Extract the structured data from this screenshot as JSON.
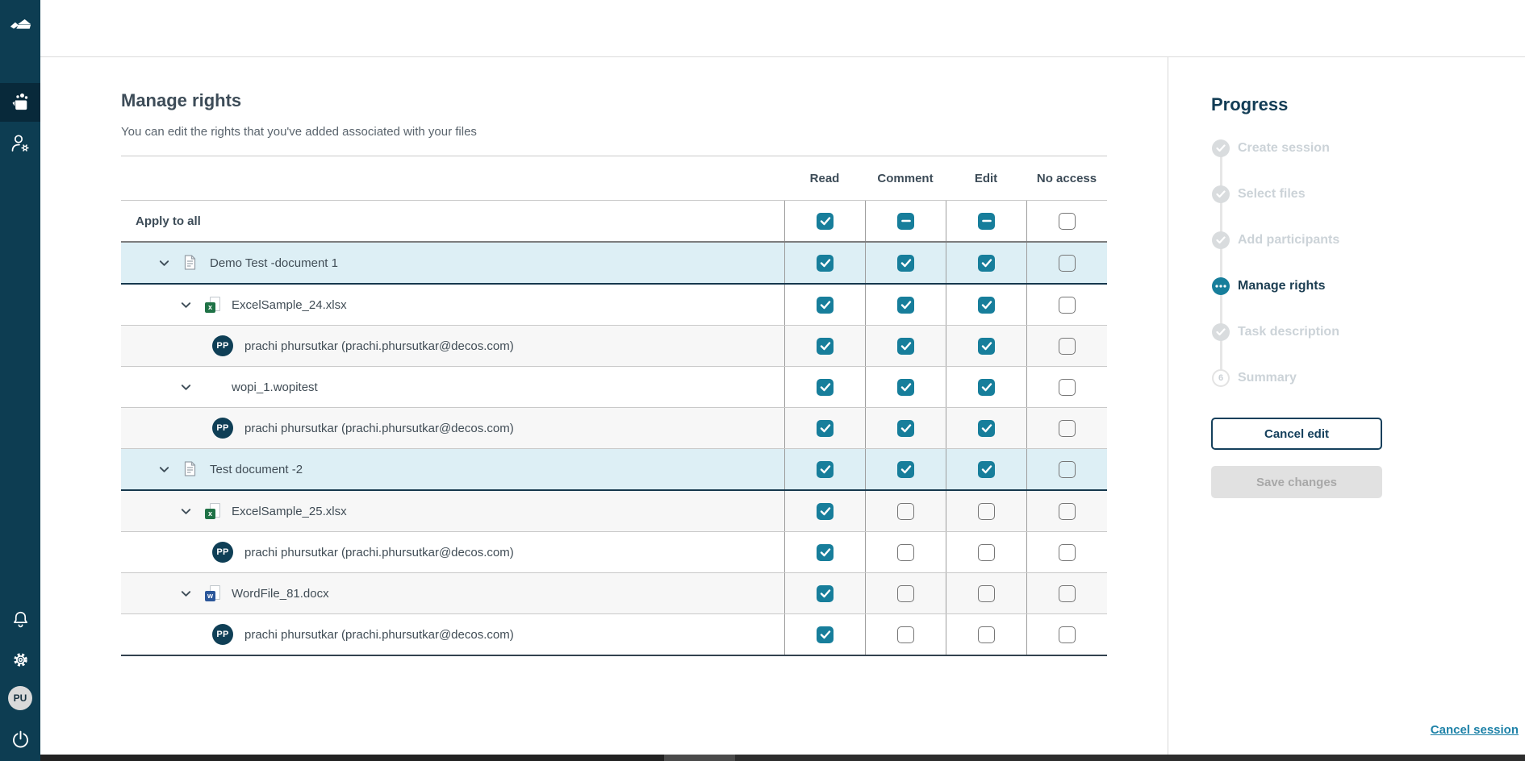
{
  "colors": {
    "accent": "#177e9b",
    "sidebar_bg": "#0d3d52",
    "row_highlight": "#ddeff5",
    "link": "#1e82a8"
  },
  "sidebar": {
    "avatar_initials": "PU"
  },
  "page": {
    "title": "Manage rights",
    "subtitle": "You can edit the rights that you've added associated with your files"
  },
  "rights_table": {
    "columns": [
      "Read",
      "Comment",
      "Edit",
      "No access"
    ],
    "rows": [
      {
        "type": "apply",
        "label": "Apply to all",
        "states": [
          "checked",
          "indeterminate",
          "indeterminate",
          "unchecked"
        ]
      },
      {
        "type": "document",
        "label": "Demo Test -document 1",
        "icon": "generic-doc",
        "states": [
          "checked",
          "checked",
          "checked",
          "unchecked"
        ]
      },
      {
        "type": "file",
        "label": "ExcelSample_24.xlsx",
        "icon": "excel",
        "states": [
          "checked",
          "checked",
          "checked",
          "unchecked"
        ]
      },
      {
        "type": "participant",
        "label": "prachi phursutkar (prachi.phursutkar@decos.com)",
        "initials": "PP",
        "states": [
          "checked",
          "checked",
          "checked",
          "unchecked"
        ]
      },
      {
        "type": "file",
        "label": "wopi_1.wopitest",
        "icon": "none",
        "states": [
          "checked",
          "checked",
          "checked",
          "unchecked"
        ]
      },
      {
        "type": "participant",
        "label": "prachi phursutkar (prachi.phursutkar@decos.com)",
        "initials": "PP",
        "states": [
          "checked",
          "checked",
          "checked",
          "unchecked"
        ]
      },
      {
        "type": "document",
        "label": "Test document -2",
        "icon": "generic-doc",
        "states": [
          "checked",
          "checked",
          "checked",
          "unchecked"
        ]
      },
      {
        "type": "file",
        "label": "ExcelSample_25.xlsx",
        "icon": "excel",
        "states": [
          "checked",
          "unchecked",
          "unchecked",
          "unchecked"
        ]
      },
      {
        "type": "participant",
        "label": "prachi phursutkar (prachi.phursutkar@decos.com)",
        "initials": "PP",
        "states": [
          "checked",
          "unchecked",
          "unchecked",
          "unchecked"
        ]
      },
      {
        "type": "file",
        "label": "WordFile_81.docx",
        "icon": "word",
        "states": [
          "checked",
          "unchecked",
          "unchecked",
          "unchecked"
        ]
      },
      {
        "type": "participant",
        "label": "prachi phursutkar (prachi.phursutkar@decos.com)",
        "initials": "PP",
        "states": [
          "checked",
          "unchecked",
          "unchecked",
          "unchecked"
        ]
      }
    ]
  },
  "progress": {
    "title": "Progress",
    "steps": [
      {
        "label": "Create session",
        "status": "done"
      },
      {
        "label": "Select files",
        "status": "done"
      },
      {
        "label": "Add participants",
        "status": "done"
      },
      {
        "label": "Manage rights",
        "status": "active"
      },
      {
        "label": "Task description",
        "status": "done"
      },
      {
        "label": "Summary",
        "status": "upcoming",
        "number": "6"
      }
    ],
    "cancel_edit_label": "Cancel edit",
    "save_changes_label": "Save changes"
  },
  "footer": {
    "cancel_session_label": "Cancel session"
  }
}
